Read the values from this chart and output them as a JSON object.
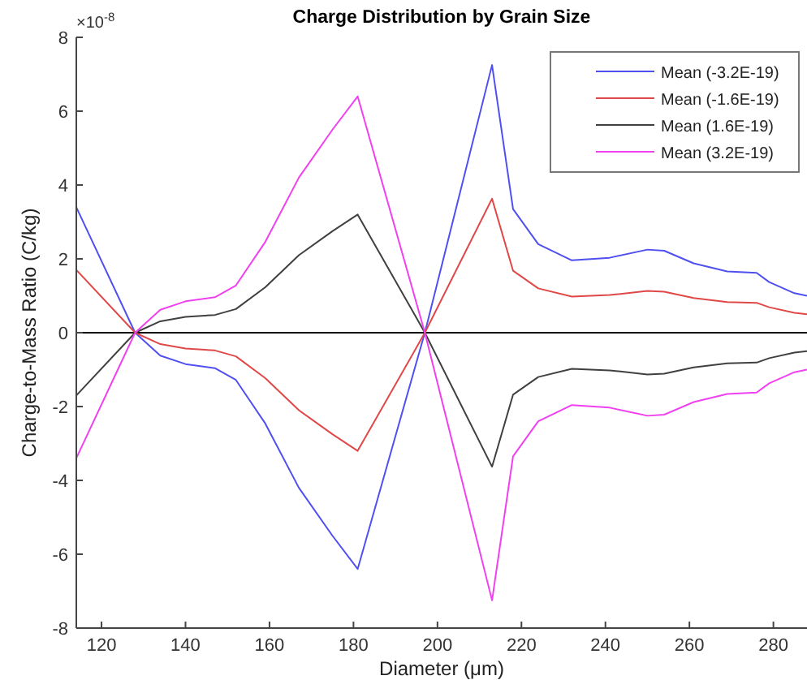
{
  "chart_data": {
    "type": "line",
    "title": "Charge Distribution by Grain Size",
    "xlabel": "Diameter (μm)",
    "ylabel": "Charge-to-Mass Ratio (C/kg)",
    "annotations": [
      "×10$^{-8}$"
    ],
    "x": [
      114,
      128,
      134,
      140,
      147,
      152,
      159,
      167,
      175,
      181,
      197,
      213,
      218,
      224,
      232,
      241,
      250,
      254,
      261,
      269,
      276,
      279,
      285,
      288
    ],
    "series": [
      {
        "name": "Mean (-3.2E-19)",
        "color": "#5050f0",
        "values": [
          3.4,
          0,
          -0.62,
          -0.85,
          -0.96,
          -1.28,
          -2.46,
          -4.2,
          -5.5,
          -6.4,
          0,
          7.25,
          3.35,
          2.4,
          1.96,
          2.03,
          2.25,
          2.22,
          1.88,
          1.66,
          1.62,
          1.37,
          1.07,
          1.0
        ]
      },
      {
        "name": "Mean (-1.6E-19)",
        "color": "#e04848",
        "values": [
          1.7,
          0,
          -0.31,
          -0.43,
          -0.48,
          -0.64,
          -1.23,
          -2.1,
          -2.75,
          -3.2,
          0,
          3.63,
          1.68,
          1.2,
          0.98,
          1.02,
          1.13,
          1.11,
          0.94,
          0.83,
          0.81,
          0.69,
          0.54,
          0.5
        ]
      },
      {
        "name": "Mean (1.6E-19)",
        "color": "#404040",
        "values": [
          -1.7,
          0,
          0.31,
          0.43,
          0.48,
          0.64,
          1.23,
          2.1,
          2.75,
          3.2,
          0,
          -3.63,
          -1.68,
          -1.2,
          -0.98,
          -1.02,
          -1.13,
          -1.11,
          -0.94,
          -0.83,
          -0.81,
          -0.69,
          -0.54,
          -0.5
        ]
      },
      {
        "name": "Mean (3.2E-19)",
        "color": "#f040f0",
        "values": [
          -3.4,
          0,
          0.62,
          0.85,
          0.96,
          1.28,
          2.46,
          4.2,
          5.5,
          6.4,
          0,
          -7.25,
          -3.35,
          -2.4,
          -1.96,
          -2.03,
          -2.25,
          -2.22,
          -1.88,
          -1.66,
          -1.62,
          -1.37,
          -1.07,
          -1.0
        ]
      }
    ],
    "xlim": [
      114,
      288
    ],
    "xticks": [
      120,
      140,
      160,
      180,
      200,
      220,
      240,
      260,
      280
    ],
    "ylim": [
      -8,
      8
    ],
    "yticks": [
      -8,
      -6,
      -4,
      -2,
      0,
      2,
      4,
      6,
      8
    ],
    "ref_lines": [
      {
        "axis": "y",
        "value": 0,
        "color": "#000000"
      }
    ],
    "legend": "top right",
    "grid": false,
    "marker": "none",
    "line_style": "solid"
  }
}
